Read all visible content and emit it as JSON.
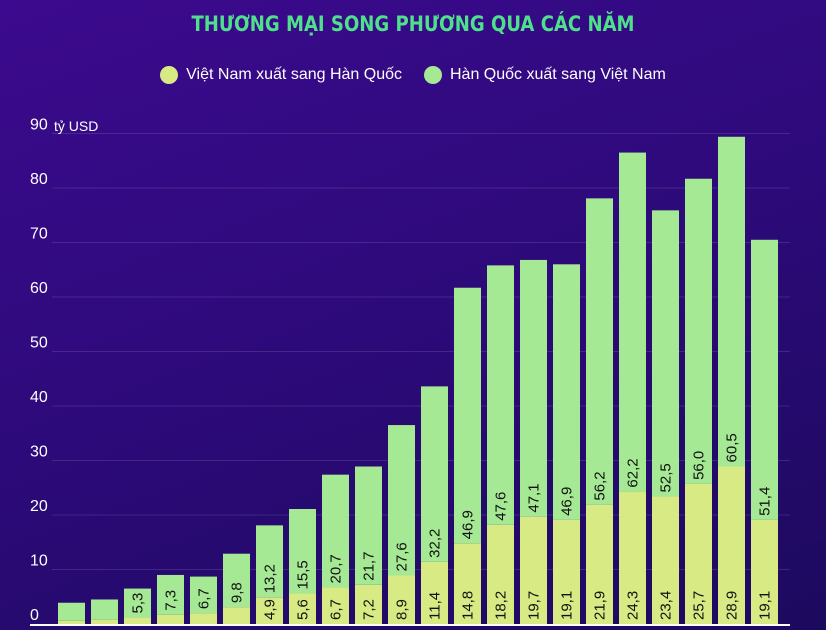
{
  "chart_data": {
    "type": "bar",
    "stacked": true,
    "title": "THƯƠNG MẠI SONG PHƯƠNG QUA CÁC NĂM",
    "ylabel": "tỷ USD",
    "xlabel": "",
    "ylim": [
      0,
      90
    ],
    "yticks": [
      0,
      10,
      20,
      30,
      40,
      50,
      60,
      70,
      80,
      90
    ],
    "grid": true,
    "legend_position": "top",
    "series": [
      {
        "name": "Việt Nam xuất sang Hàn Quốc",
        "color": "#d8ea84",
        "values": [
          0.6,
          0.8,
          1.2,
          1.7,
          2.0,
          3.1,
          4.9,
          5.6,
          6.7,
          7.2,
          8.9,
          11.4,
          14.8,
          18.2,
          19.7,
          19.1,
          21.9,
          24.3,
          23.4,
          25.7,
          28.9,
          19.1
        ],
        "labels": [
          "",
          "",
          "",
          "",
          "",
          "",
          "4,9",
          "5,6",
          "6,7",
          "7,2",
          "8,9",
          "11,4",
          "14,8",
          "18,2",
          "19,7",
          "19,1",
          "21,9",
          "24,3",
          "23,4",
          "25,7",
          "28,9",
          "19,1"
        ]
      },
      {
        "name": "Hàn Quốc xuất sang Việt Nam",
        "color": "#a6e994",
        "values": [
          3.3,
          3.7,
          5.3,
          7.3,
          6.7,
          9.8,
          13.2,
          15.5,
          20.7,
          21.7,
          27.6,
          32.2,
          46.9,
          47.6,
          47.1,
          46.9,
          56.2,
          62.2,
          52.5,
          56.0,
          60.5,
          51.4
        ],
        "labels": [
          "",
          "",
          "5,3",
          "7,3",
          "6,7",
          "9,8",
          "13,2",
          "15,5",
          "20,7",
          "21,7",
          "27,6",
          "32,2",
          "46,9",
          "47,6",
          "47,1",
          "46,9",
          "56,2",
          "62,2",
          "52,5",
          "56,0",
          "60,5",
          "51,4"
        ]
      }
    ]
  }
}
